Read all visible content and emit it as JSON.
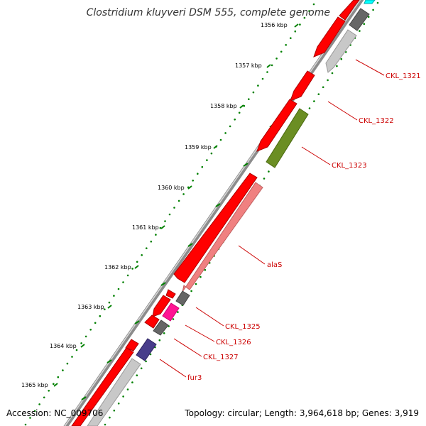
{
  "title": "Clostridium kluyveri DSM 555, complete genome",
  "footer": {
    "accession": "Accession: NC_009706",
    "summary": "Topology: circular; Length: 3,964,618 bp; Genes: 3,919"
  },
  "scale": {
    "ticks": [
      "1356 kbp",
      "1357 kbp",
      "1358 kbp",
      "1359 kbp",
      "1360 kbp",
      "1361 kbp",
      "1362 kbp",
      "1363 kbp",
      "1364 kbp",
      "1365 kbp"
    ]
  },
  "gene_labels": [
    "CKL_1321",
    "CKL_1322",
    "CKL_1323",
    "alaS",
    "CKL_1325",
    "CKL_1326",
    "CKL_1327",
    "fur3"
  ],
  "colors": {
    "cds": "#ff0000",
    "cds_grey": "#c8c8c8",
    "cds_dark": "#666666",
    "green": "#6b8e23",
    "pink": "#f08080",
    "magenta": "#ff1493",
    "purple": "#483d8b",
    "cyan": "#00ffff",
    "tick": "#008000",
    "label": "#cc0000"
  }
}
